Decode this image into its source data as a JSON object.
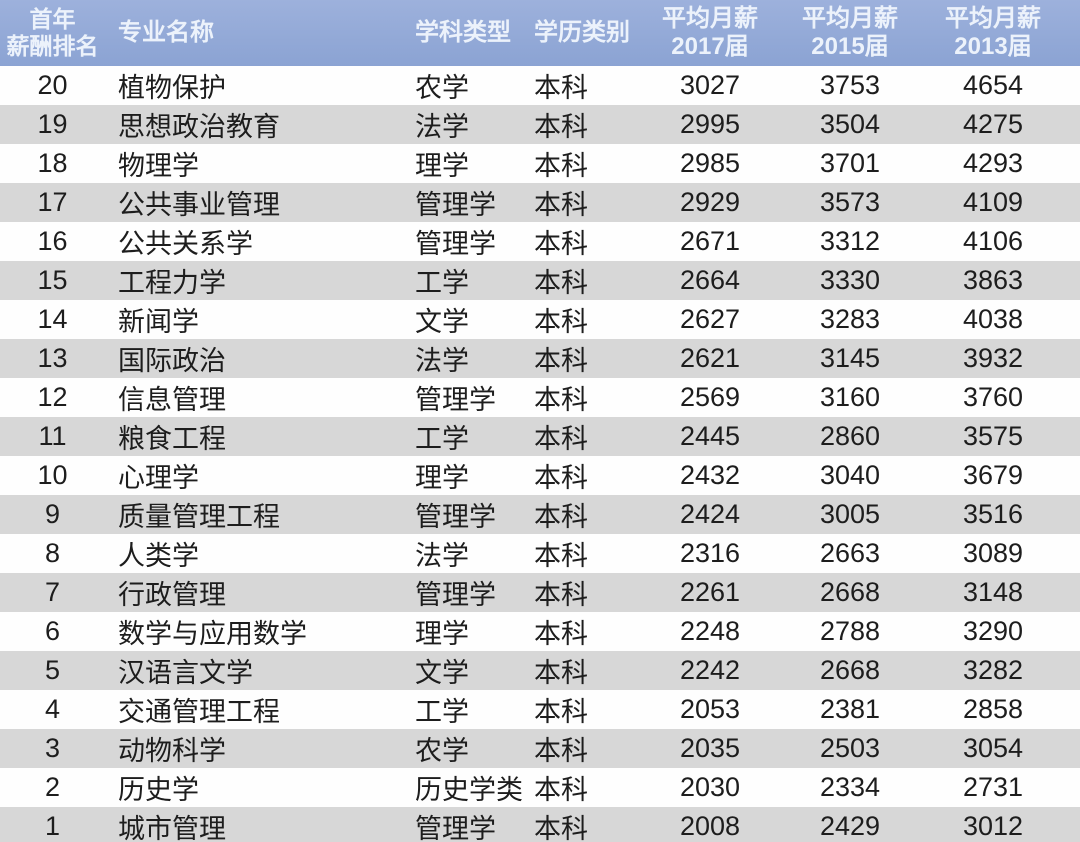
{
  "header": {
    "rank": [
      "首年",
      "薪酬排名"
    ],
    "major": "专业名称",
    "discipline": "学科类型",
    "degree": "学历类别",
    "salary": [
      [
        "平均月薪",
        "2017届"
      ],
      [
        "平均月薪",
        "2015届"
      ],
      [
        "平均月薪",
        "2013届"
      ]
    ]
  },
  "colors": {
    "header_bg": "#92a8d6",
    "header_text": "#ecf2fb",
    "alt_row_bg": "#d7d7d7",
    "row_bg": "#fefefe",
    "body_text": "#1d1d1d"
  },
  "chart_data": {
    "type": "table",
    "columns": [
      "首年薪酬排名",
      "专业名称",
      "学科类型",
      "学历类别",
      "平均月薪2017届",
      "平均月薪2015届",
      "平均月薪2013届"
    ],
    "rows": [
      [
        "20",
        "植物保护",
        "农学",
        "本科",
        "3027",
        "3753",
        "4654"
      ],
      [
        "19",
        "思想政治教育",
        "法学",
        "本科",
        "2995",
        "3504",
        "4275"
      ],
      [
        "18",
        "物理学",
        "理学",
        "本科",
        "2985",
        "3701",
        "4293"
      ],
      [
        "17",
        "公共事业管理",
        "管理学",
        "本科",
        "2929",
        "3573",
        "4109"
      ],
      [
        "16",
        "公共关系学",
        "管理学",
        "本科",
        "2671",
        "3312",
        "4106"
      ],
      [
        "15",
        "工程力学",
        "工学",
        "本科",
        "2664",
        "3330",
        "3863"
      ],
      [
        "14",
        "新闻学",
        "文学",
        "本科",
        "2627",
        "3283",
        "4038"
      ],
      [
        "13",
        "国际政治",
        "法学",
        "本科",
        "2621",
        "3145",
        "3932"
      ],
      [
        "12",
        "信息管理",
        "管理学",
        "本科",
        "2569",
        "3160",
        "3760"
      ],
      [
        "11",
        "粮食工程",
        "工学",
        "本科",
        "2445",
        "2860",
        "3575"
      ],
      [
        "10",
        "心理学",
        "理学",
        "本科",
        "2432",
        "3040",
        "3679"
      ],
      [
        "9",
        "质量管理工程",
        "管理学",
        "本科",
        "2424",
        "3005",
        "3516"
      ],
      [
        "8",
        "人类学",
        "法学",
        "本科",
        "2316",
        "2663",
        "3089"
      ],
      [
        "7",
        "行政管理",
        "管理学",
        "本科",
        "2261",
        "2668",
        "3148"
      ],
      [
        "6",
        "数学与应用数学",
        "理学",
        "本科",
        "2248",
        "2788",
        "3290"
      ],
      [
        "5",
        "汉语言文学",
        "文学",
        "本科",
        "2242",
        "2668",
        "3282"
      ],
      [
        "4",
        "交通管理工程",
        "工学",
        "本科",
        "2053",
        "2381",
        "2858"
      ],
      [
        "3",
        "动物科学",
        "农学",
        "本科",
        "2035",
        "2503",
        "3054"
      ],
      [
        "2",
        "历史学",
        "历史学类",
        "本科",
        "2030",
        "2334",
        "2731"
      ],
      [
        "1",
        "城市管理",
        "管理学",
        "本科",
        "2008",
        "2429",
        "3012"
      ]
    ]
  }
}
